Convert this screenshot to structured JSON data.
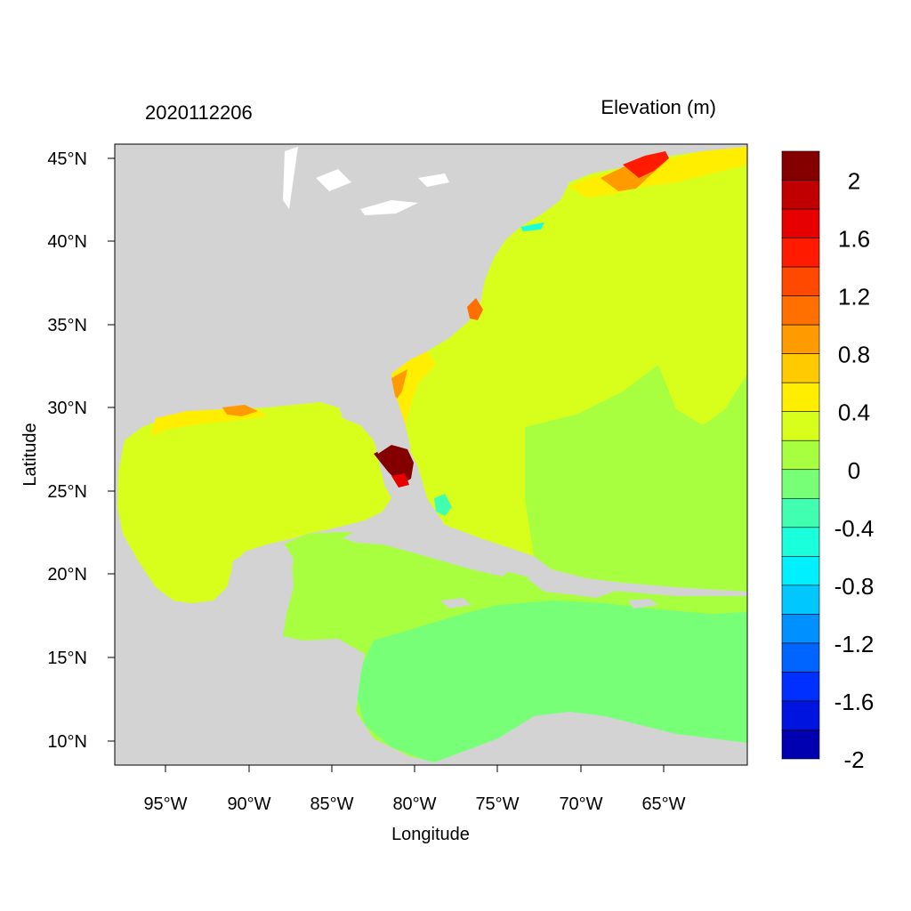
{
  "title_left": "2020112206",
  "title_right": "Elevation (m)",
  "x_axis_label": "Longitude",
  "y_axis_label": "Latitude",
  "x_ticks": [
    "95°W",
    "90°W",
    "85°W",
    "80°W",
    "75°W",
    "70°W",
    "65°W"
  ],
  "y_ticks": [
    "45°N",
    "40°N",
    "35°N",
    "30°N",
    "25°N",
    "20°N",
    "15°N",
    "10°N"
  ],
  "colorbar": {
    "labels": [
      "2",
      "1.6",
      "1.2",
      "0.8",
      "0.4",
      "0",
      "-0.4",
      "-0.8",
      "-1.2",
      "-1.6",
      "-2"
    ],
    "colors": [
      "#840000",
      "#c00000",
      "#e60000",
      "#ff1a00",
      "#ff4800",
      "#ff7000",
      "#ff9a00",
      "#ffcb00",
      "#ffee00",
      "#d8ff1c",
      "#a8ff40",
      "#78ff78",
      "#40ffb0",
      "#1affdc",
      "#00f0ff",
      "#00c8ff",
      "#0090ff",
      "#0064ff",
      "#0030ff",
      "#0014e0",
      "#0000b0"
    ],
    "land_color": "#d3d3d3"
  },
  "chart_data": {
    "type": "heatmap",
    "title": "2020112206",
    "subtitle": "Elevation (m)",
    "xlabel": "Longitude",
    "ylabel": "Latitude",
    "xlim": [
      -98,
      -60
    ],
    "ylim": [
      8.5,
      46
    ],
    "x_ticks": [
      -95,
      -90,
      -85,
      -80,
      -75,
      -70,
      -65
    ],
    "y_ticks": [
      45,
      40,
      35,
      30,
      25,
      20,
      15,
      10
    ],
    "color_range": [
      -2.2,
      2.2
    ],
    "color_step": 0.2,
    "regions_approx": [
      {
        "area": "Gulf of Mexico",
        "elevation_m": 0.3
      },
      {
        "area": "Caribbean Sea",
        "elevation_m": 0.0
      },
      {
        "area": "Western Atlantic",
        "elevation_m": 0.3
      },
      {
        "area": "Southwest Florida coast",
        "elevation_m": 2.1
      },
      {
        "area": "Bay of Fundy",
        "elevation_m": 1.6
      }
    ]
  }
}
